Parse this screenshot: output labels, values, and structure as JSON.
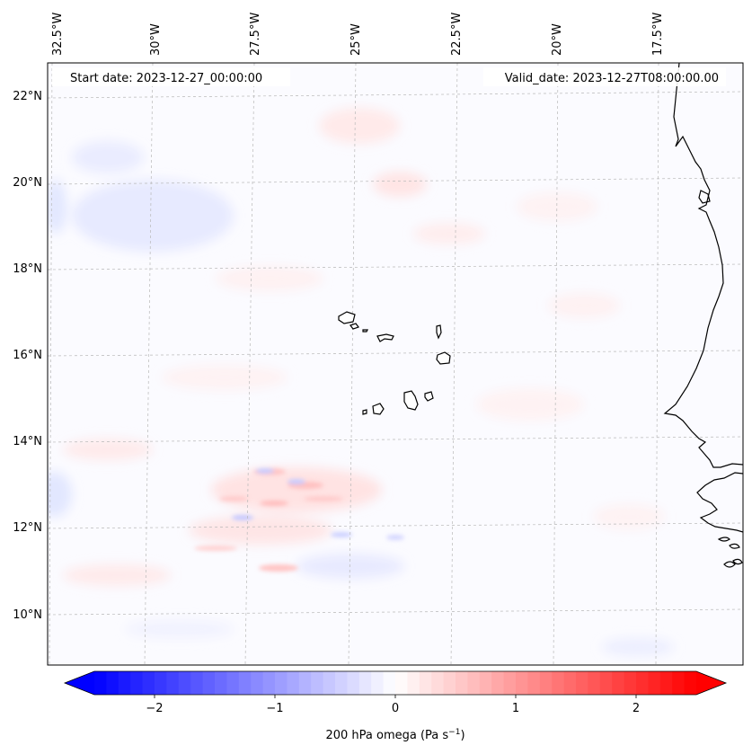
{
  "title": {
    "start_date": "Start date: 2023-12-27_00:00:00",
    "valid_date": "Valid_date: 2023-12-27T08:00:00.00"
  },
  "map": {
    "lon_labels": [
      "32.5°W",
      "30°W",
      "27.5°W",
      "25°W",
      "22.5°W",
      "20°W",
      "17.5°W"
    ],
    "lat_labels": [
      "22°N",
      "20°N",
      "18°N",
      "16°N",
      "14°N",
      "12°N",
      "10°N"
    ],
    "islands": [
      "Santo Antão",
      "São Vicente",
      "Santa Luzia",
      "São Nicolau",
      "Sal",
      "Boa Vista",
      "Maio",
      "Santiago",
      "Fogo",
      "Brava"
    ],
    "field": "200 hPa omega"
  },
  "colorbar": {
    "label": "200 hPa omega (Pa s",
    "label_unit_sup": "−1",
    "label_close": ")",
    "ticks": [
      "−2",
      "−1",
      "0",
      "1",
      "2"
    ],
    "range": [
      -2.7,
      2.7
    ],
    "colors": {
      "neg": "#0000ff",
      "zero": "#ffffff",
      "pos": "#ff0000"
    }
  }
}
